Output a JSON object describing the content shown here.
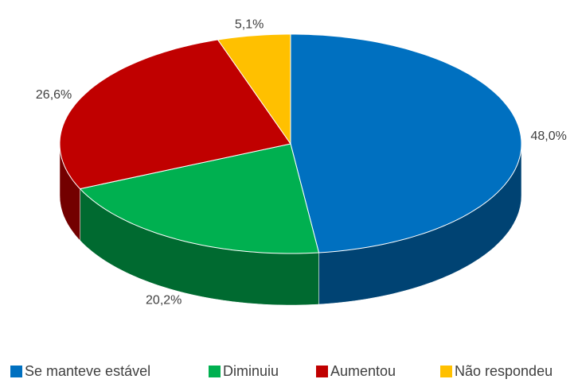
{
  "chart_data": {
    "type": "pie",
    "categories": [
      "Se manteve estável",
      "Diminuiu",
      "Aumentou",
      "Não respondeu"
    ],
    "values": [
      48.0,
      20.2,
      26.6,
      5.1
    ],
    "value_labels": [
      "48,0%",
      "20,2%",
      "26,6%",
      "5,1%"
    ],
    "colors": [
      "#0070c0",
      "#00b050",
      "#c00000",
      "#ffc000"
    ],
    "legend": "bottom"
  }
}
